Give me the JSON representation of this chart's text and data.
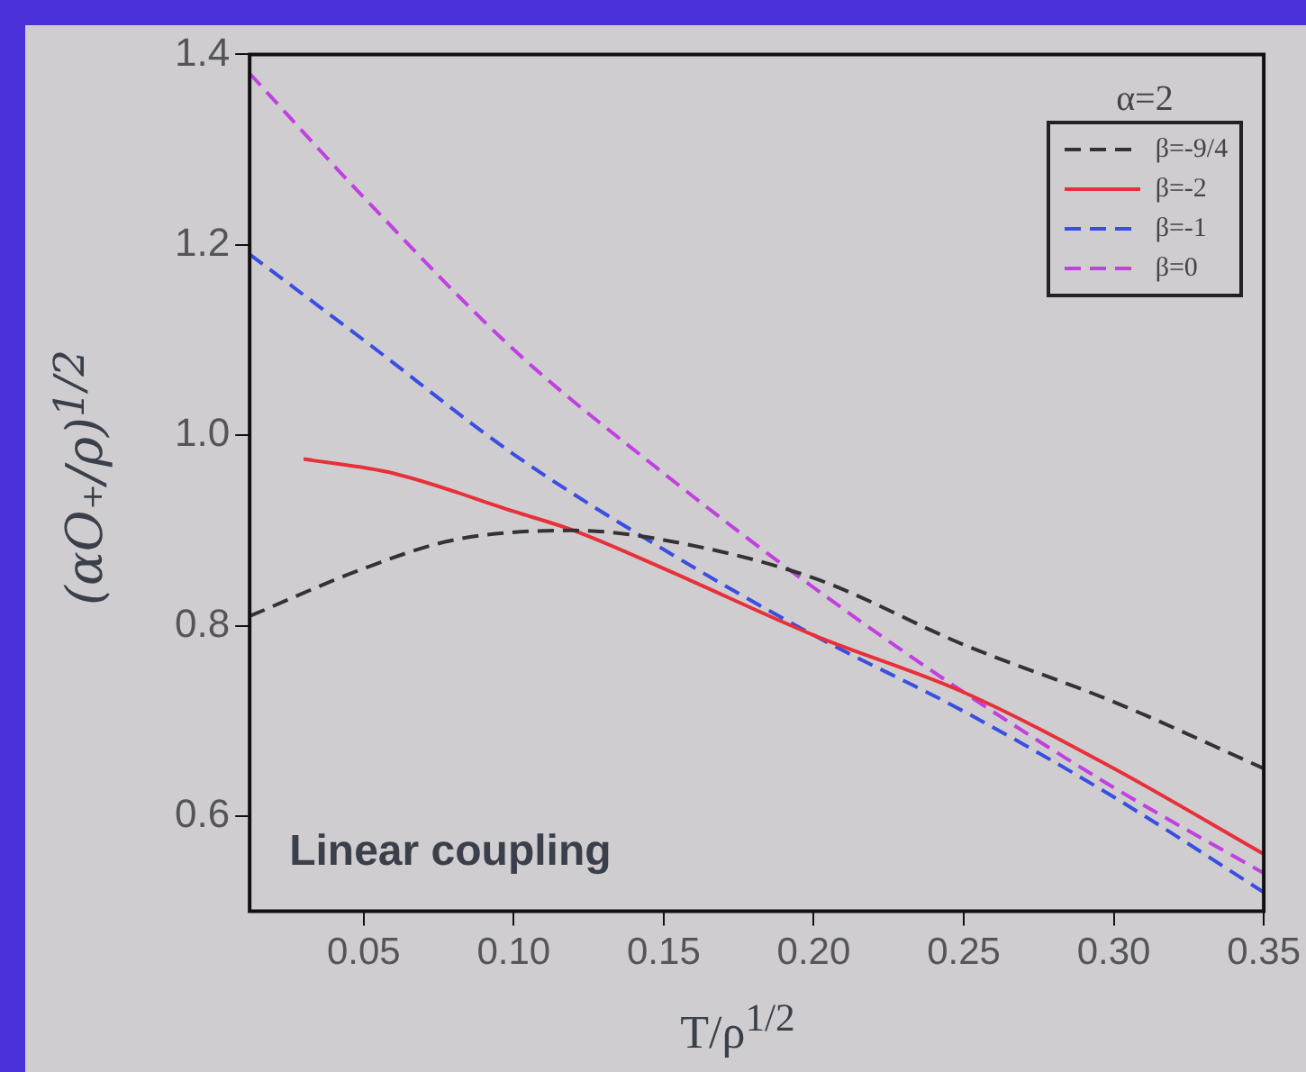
{
  "chart_data": {
    "type": "line",
    "xlabel": "T/ρ$^{1/2}$",
    "ylabel": "(αO₊/ρ)$^{1/2}$",
    "legend_title": "α=2",
    "annotations": [
      "Linear coupling"
    ],
    "xlim": [
      0.012,
      0.35
    ],
    "ylim": [
      0.5,
      1.4
    ],
    "xticks": [
      0.05,
      {
        "value": 0.1,
        "label": "0.10"
      },
      0.15,
      {
        "value": 0.2,
        "label": "0.20"
      },
      0.25,
      {
        "value": 0.3,
        "label": "0.30"
      },
      0.35
    ],
    "yticks": [
      0.6,
      0.8,
      {
        "value": 1.0,
        "label": "1.0"
      },
      1.2,
      1.4
    ],
    "grid": false,
    "legend": "top right",
    "marker": "none",
    "series": [
      {
        "name": "β=-9/4",
        "color": "#333333",
        "line_style": "dashed",
        "x": [
          0.012,
          0.05,
          0.08,
          0.12,
          0.15,
          0.2,
          0.25,
          0.3,
          0.35
        ],
        "values": [
          0.81,
          0.86,
          0.89,
          0.9,
          0.89,
          0.85,
          0.78,
          0.72,
          0.65
        ]
      },
      {
        "name": "β=-2",
        "color": "#e8303a",
        "line_style": "solid",
        "x": [
          0.03,
          0.06,
          0.1,
          0.12,
          0.15,
          0.2,
          0.25,
          0.3,
          0.35
        ],
        "values": [
          0.975,
          0.96,
          0.92,
          0.9,
          0.86,
          0.79,
          0.73,
          0.65,
          0.56
        ]
      },
      {
        "name": "β=-1",
        "color": "#3a4ee0",
        "line_style": "dashed",
        "x": [
          0.012,
          0.05,
          0.1,
          0.15,
          0.2,
          0.25,
          0.3,
          0.35
        ],
        "values": [
          1.19,
          1.1,
          0.98,
          0.88,
          0.79,
          0.71,
          0.62,
          0.52
        ]
      },
      {
        "name": "β=0",
        "color": "#c040e0",
        "line_style": "dashed",
        "x": [
          0.012,
          0.05,
          0.1,
          0.15,
          0.2,
          0.25,
          0.3,
          0.35
        ],
        "values": [
          1.38,
          1.25,
          1.09,
          0.96,
          0.84,
          0.73,
          0.63,
          0.54
        ]
      }
    ]
  }
}
